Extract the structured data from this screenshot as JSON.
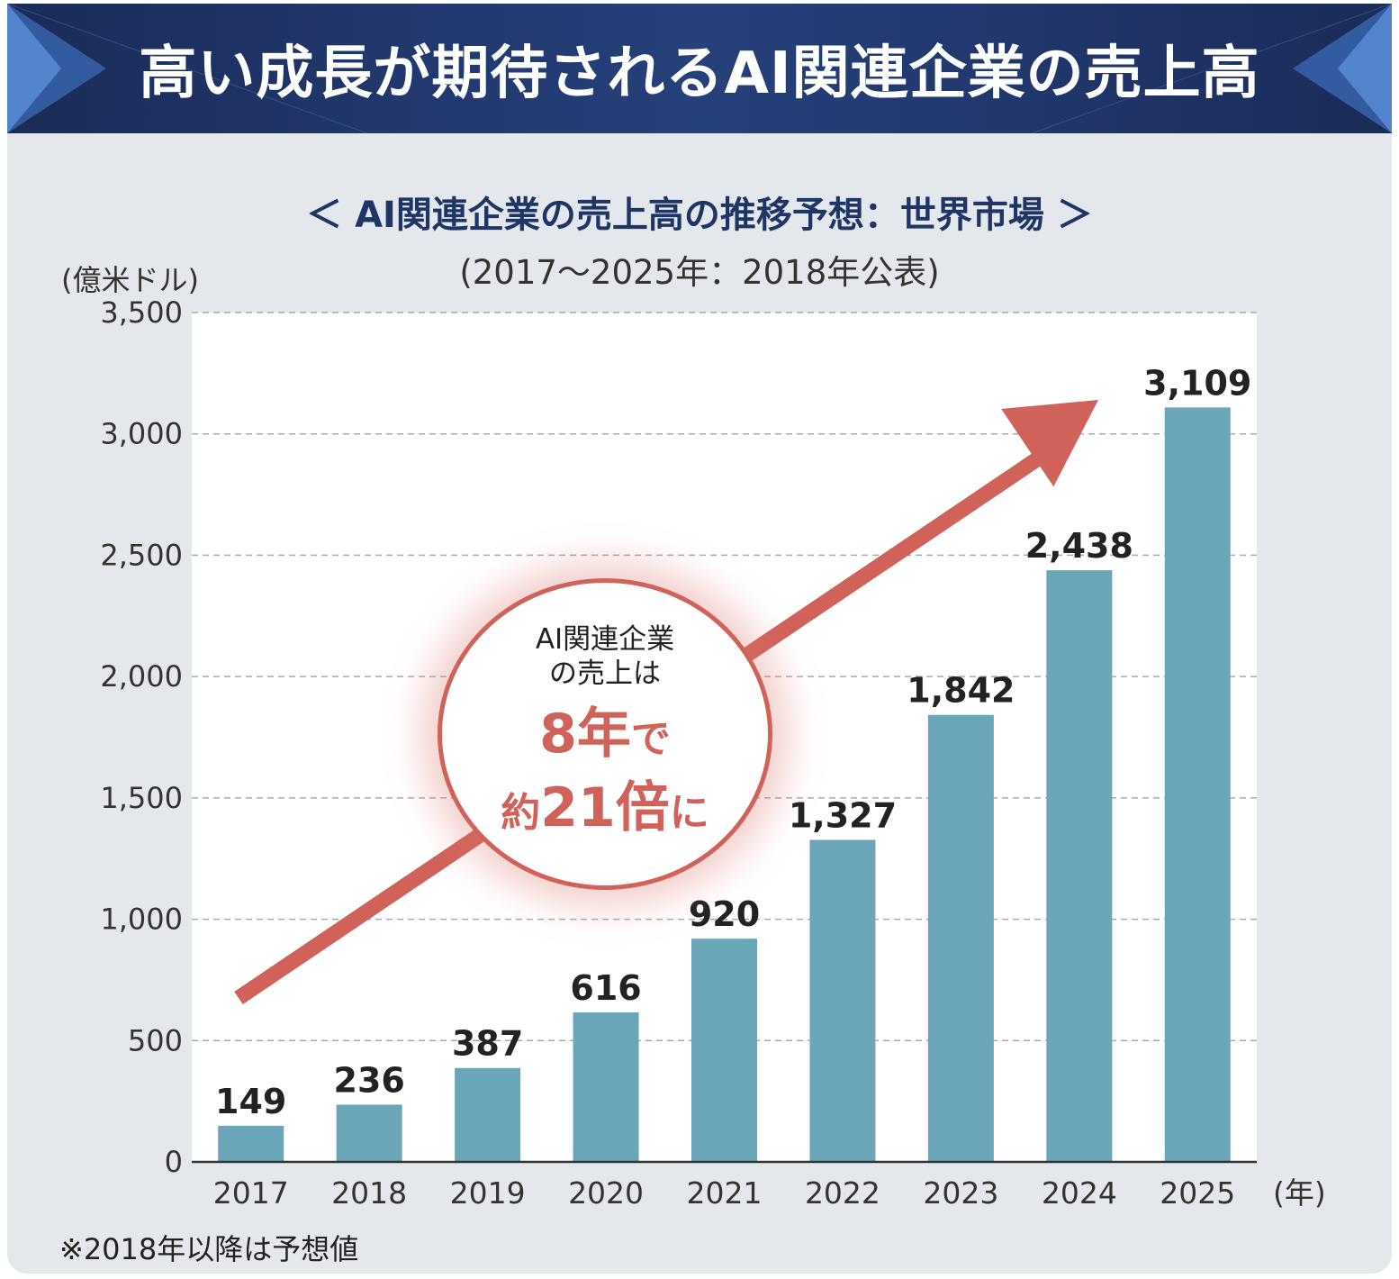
{
  "header": {
    "title": "高い成長が期待されるAI関連企業の売上高"
  },
  "chart_data": {
    "type": "bar",
    "title": "＜ AI関連企業の売上高の推移予想：世界市場 ＞",
    "subtitle": "(2017〜2025年：2018年公表)",
    "ylabel": "(億米ドル)",
    "xlabel": "(年)",
    "ylim": [
      0,
      3500
    ],
    "yticks": [
      0,
      500,
      1000,
      1500,
      2000,
      2500,
      3000,
      3500
    ],
    "ytick_labels": [
      "0",
      "500",
      "1,000",
      "1,500",
      "2,000",
      "2,500",
      "3,000",
      "3,500"
    ],
    "categories": [
      "2017",
      "2018",
      "2019",
      "2020",
      "2021",
      "2022",
      "2023",
      "2024",
      "2025"
    ],
    "values": [
      149,
      236,
      387,
      616,
      920,
      1327,
      1842,
      2438,
      3109
    ],
    "value_labels": [
      "149",
      "236",
      "387",
      "616",
      "920",
      "1,327",
      "1,842",
      "2,438",
      "3,109"
    ],
    "grid": true,
    "bar_color": "#6ba6b8"
  },
  "callout": {
    "line1": "AI関連企業",
    "line2": "の売上は",
    "big1_num": "8年",
    "big1_suffix": "で",
    "big2_prefix": "約",
    "big2_num": "21倍",
    "big2_suffix": "に"
  },
  "footnote": "※2018年以降は予想値",
  "colors": {
    "header_bg": "#22386e",
    "panel_bg": "#e4e7ec",
    "accent_red": "#d0625a",
    "bar": "#6ba6b8",
    "title_text": "#1f3566"
  }
}
